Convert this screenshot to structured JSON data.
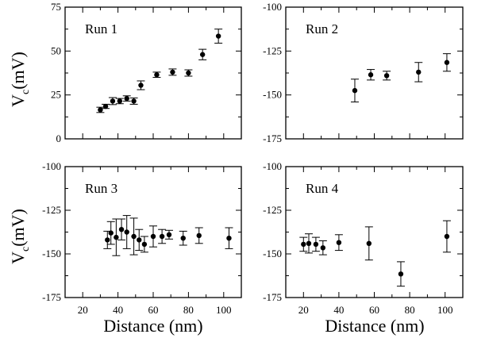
{
  "figure": {
    "ylabel_main": "V",
    "ylabel_sub": "c",
    "ylabel_unit": "(mV)",
    "xlabel": "Distance (nm)"
  },
  "chart_data": [
    {
      "type": "scatter",
      "panel": "top-left",
      "title": "Run 1",
      "xlim": [
        10,
        110
      ],
      "ylim": [
        0,
        75
      ],
      "xticks": [
        20,
        40,
        60,
        80,
        100
      ],
      "yticks": [
        0,
        25,
        50,
        75
      ],
      "show_ytick_labels": true,
      "show_xtick_labels": false,
      "grid": false,
      "points": [
        {
          "x": 30,
          "y": 16.5,
          "err": 1.5
        },
        {
          "x": 33,
          "y": 18.5,
          "err": 1.2
        },
        {
          "x": 37,
          "y": 21.5,
          "err": 2.0
        },
        {
          "x": 41,
          "y": 21.5,
          "err": 1.5
        },
        {
          "x": 45,
          "y": 23.0,
          "err": 1.5
        },
        {
          "x": 49,
          "y": 21.5,
          "err": 1.8
        },
        {
          "x": 53,
          "y": 30.5,
          "err": 2.5
        },
        {
          "x": 62,
          "y": 36.5,
          "err": 1.5
        },
        {
          "x": 71,
          "y": 38.0,
          "err": 1.8
        },
        {
          "x": 80,
          "y": 37.5,
          "err": 1.8
        },
        {
          "x": 88,
          "y": 48.0,
          "err": 3.0
        },
        {
          "x": 97,
          "y": 58.5,
          "err": 4.0
        }
      ]
    },
    {
      "type": "scatter",
      "panel": "top-right",
      "title": "Run 2",
      "xlim": [
        10,
        110
      ],
      "ylim": [
        -175,
        -100
      ],
      "xticks": [
        20,
        40,
        60,
        80,
        100
      ],
      "yticks": [
        -175,
        -150,
        -125,
        -100
      ],
      "show_ytick_labels": true,
      "show_xtick_labels": false,
      "grid": false,
      "points": [
        {
          "x": 49,
          "y": -147.5,
          "err": 6.5
        },
        {
          "x": 58,
          "y": -138.5,
          "err": 3.0
        },
        {
          "x": 67,
          "y": -139.0,
          "err": 2.5
        },
        {
          "x": 85,
          "y": -137.0,
          "err": 5.5
        },
        {
          "x": 101,
          "y": -131.5,
          "err": 5.0
        }
      ]
    },
    {
      "type": "scatter",
      "panel": "bottom-left",
      "title": "Run 3",
      "xlim": [
        10,
        110
      ],
      "ylim": [
        -175,
        -100
      ],
      "xticks": [
        20,
        40,
        60,
        80,
        100
      ],
      "yticks": [
        -175,
        -150,
        -125,
        -100
      ],
      "show_ytick_labels": true,
      "show_xtick_labels": true,
      "grid": false,
      "points": [
        {
          "x": 34,
          "y": -142.0,
          "err": 5.0
        },
        {
          "x": 36,
          "y": -138.0,
          "err": 6.5
        },
        {
          "x": 39,
          "y": -140.5,
          "err": 10.5
        },
        {
          "x": 42,
          "y": -136.0,
          "err": 6.0
        },
        {
          "x": 45,
          "y": -137.5,
          "err": 9.5
        },
        {
          "x": 49,
          "y": -140.0,
          "err": 10.5
        },
        {
          "x": 52,
          "y": -142.0,
          "err": 6.0
        },
        {
          "x": 55,
          "y": -144.5,
          "err": 4.5
        },
        {
          "x": 60,
          "y": -140.0,
          "err": 6.0
        },
        {
          "x": 65,
          "y": -140.0,
          "err": 4.0
        },
        {
          "x": 69,
          "y": -139.0,
          "err": 2.5
        },
        {
          "x": 77,
          "y": -141.0,
          "err": 4.0
        },
        {
          "x": 86,
          "y": -139.5,
          "err": 4.5
        },
        {
          "x": 103,
          "y": -141.0,
          "err": 6.0
        }
      ]
    },
    {
      "type": "scatter",
      "panel": "bottom-right",
      "title": "Run 4",
      "xlim": [
        10,
        110
      ],
      "ylim": [
        -175,
        -100
      ],
      "xticks": [
        20,
        40,
        60,
        80,
        100
      ],
      "yticks": [
        -175,
        -150,
        -125,
        -100
      ],
      "show_ytick_labels": true,
      "show_xtick_labels": true,
      "grid": false,
      "points": [
        {
          "x": 20,
          "y": -144.5,
          "err": 4.0
        },
        {
          "x": 23,
          "y": -144.0,
          "err": 5.5
        },
        {
          "x": 27,
          "y": -144.5,
          "err": 4.0
        },
        {
          "x": 31,
          "y": -146.5,
          "err": 4.0
        },
        {
          "x": 40,
          "y": -143.5,
          "err": 4.5
        },
        {
          "x": 57,
          "y": -144.0,
          "err": 9.5
        },
        {
          "x": 75,
          "y": -161.5,
          "err": 7.0
        },
        {
          "x": 101,
          "y": -140.0,
          "err": 9.0
        }
      ]
    }
  ]
}
